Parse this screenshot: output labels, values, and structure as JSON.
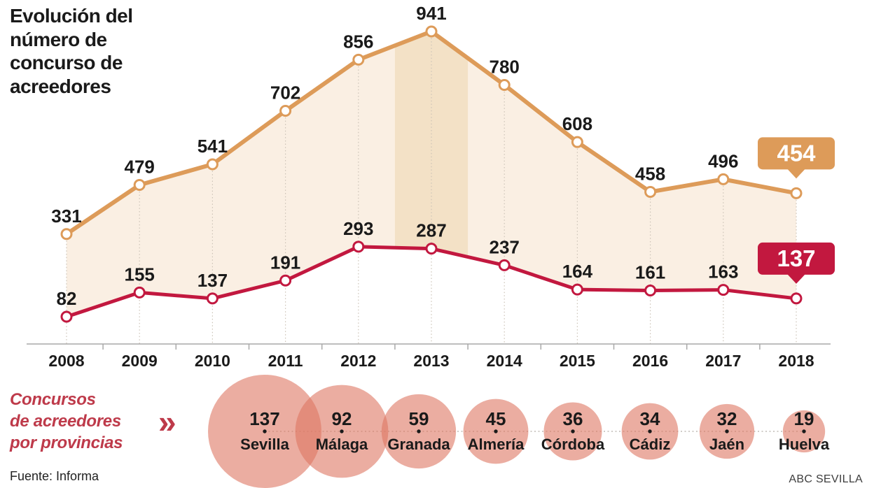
{
  "title": {
    "full": "Evolución del número de concurso de acreedores",
    "display": "Evolución del\nnúmero de\nconcurso de\nacreedores"
  },
  "provinces_section": {
    "title_full": "Concursos de acreedores por provincias",
    "title_display": "Concursos\nde acreedores\npor provincias",
    "chevron": "»"
  },
  "footer": {
    "source": "Fuente: Informa",
    "credit": "ABC SEVILLA"
  },
  "colors": {
    "orange": "#DD9B59",
    "crimson": "#C2183F",
    "area_fill": "#FAEFE3",
    "band_fill": "#F3E1C6",
    "bubble": "#DE7663",
    "axis": "#A9A9A9",
    "gridline": "#CCC3B7",
    "text": "#1A1A1A",
    "provinces_title": "#BE3A4A",
    "badge_text": "#FFFFFF"
  },
  "chart_data": [
    {
      "type": "line",
      "title": "Evolución del número de concurso de acreedores",
      "x": [
        2008,
        2009,
        2010,
        2011,
        2012,
        2013,
        2014,
        2015,
        2016,
        2017,
        2018
      ],
      "series": [
        {
          "name": "concursos-linea-superior",
          "color": "#DD9B59",
          "values": [
            331,
            479,
            541,
            702,
            856,
            941,
            780,
            608,
            458,
            496,
            454
          ],
          "final_value_badge": 454
        },
        {
          "name": "concursos-linea-inferior",
          "color": "#C2183F",
          "values": [
            82,
            155,
            137,
            191,
            293,
            287,
            237,
            164,
            161,
            163,
            137
          ],
          "final_value_badge": 137
        }
      ],
      "highlight_year": 2013,
      "ylim": [
        0,
        941
      ],
      "grid": "vertical-dotted",
      "legend": "none",
      "area_between_series": true,
      "data_labels": "above-points"
    },
    {
      "type": "bubble",
      "title": "Concursos de acreedores por provincias",
      "categories": [
        "Sevilla",
        "Málaga",
        "Granada",
        "Almería",
        "Córdoba",
        "Cádiz",
        "Jaén",
        "Huelva"
      ],
      "values": [
        137,
        92,
        59,
        45,
        36,
        34,
        32,
        19
      ],
      "layout": "horizontal-row-dotted-axis"
    }
  ]
}
